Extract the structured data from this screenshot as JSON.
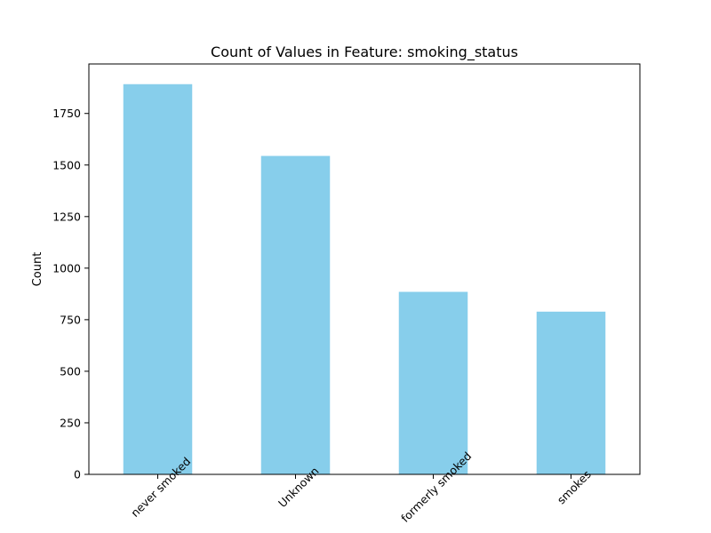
{
  "chart_data": {
    "type": "bar",
    "title": "Count of Values in Feature: smoking_status",
    "xlabel": "",
    "ylabel": "Count",
    "categories": [
      "never smoked",
      "Unknown",
      "formerly smoked",
      "smokes"
    ],
    "values": [
      1892,
      1544,
      885,
      789
    ],
    "ylim": [
      0,
      1990
    ],
    "yticks": [
      0,
      250,
      500,
      750,
      1000,
      1250,
      1500,
      1750
    ],
    "ytick_labels": [
      "0",
      "250",
      "500",
      "750",
      "1000",
      "1250",
      "1500",
      "1750"
    ],
    "grid": false,
    "legend": "none",
    "bar_color": "#87CEEB",
    "xtick_rotation_deg": 45
  }
}
